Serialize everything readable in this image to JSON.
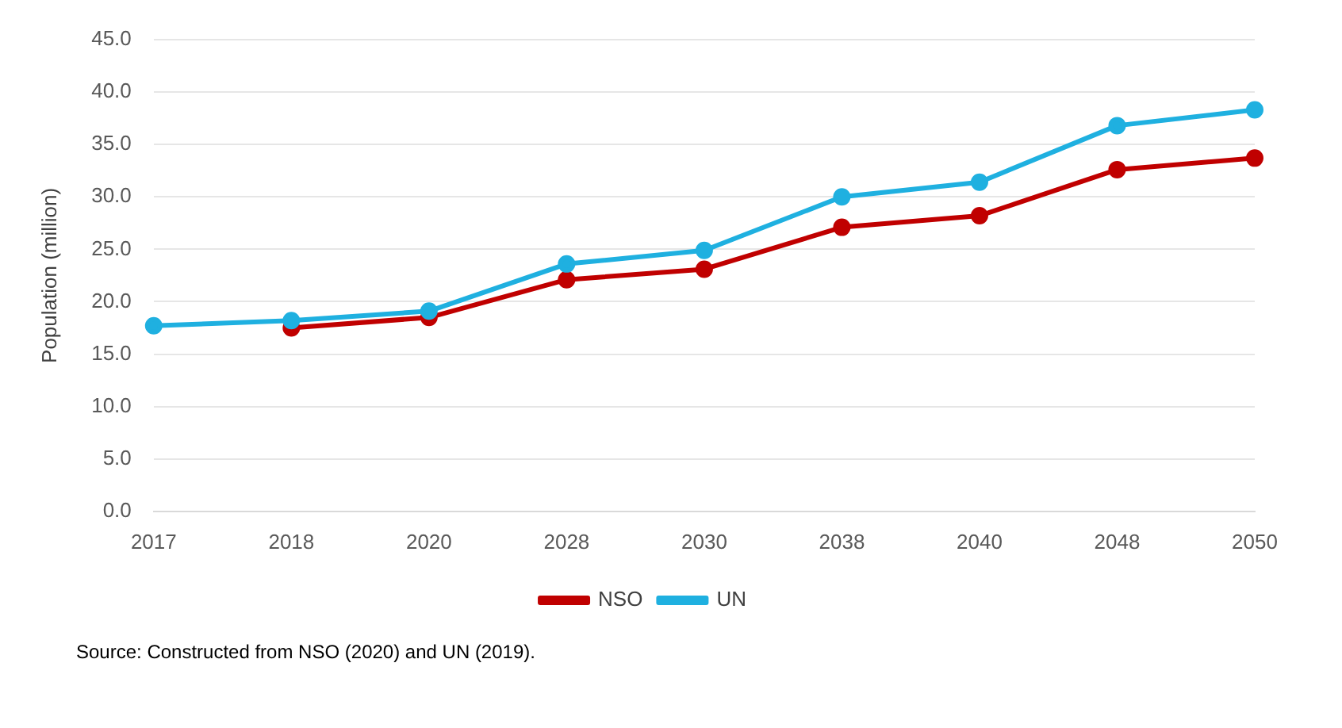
{
  "chart_data": {
    "type": "line",
    "ylabel": "Population (million)",
    "categories": [
      "2017",
      "2018",
      "2020",
      "2028",
      "2030",
      "2038",
      "2040",
      "2048",
      "2050"
    ],
    "series": [
      {
        "name": "NSO",
        "color": "#c00000",
        "values": [
          null,
          17.5,
          18.5,
          22.1,
          23.1,
          27.1,
          28.2,
          32.6,
          33.7
        ]
      },
      {
        "name": "UN",
        "color": "#1fb0e0",
        "values": [
          17.7,
          18.2,
          19.1,
          23.6,
          24.9,
          30.0,
          31.4,
          36.8,
          38.3
        ]
      }
    ],
    "ylim": [
      0,
      45
    ],
    "yticks": [
      {
        "value": 0,
        "label": "0.0"
      },
      {
        "value": 5,
        "label": "5.0"
      },
      {
        "value": 10,
        "label": "10.0"
      },
      {
        "value": 15,
        "label": "15.0"
      },
      {
        "value": 20,
        "label": "20.0"
      },
      {
        "value": 25,
        "label": "25.0"
      },
      {
        "value": 30,
        "label": "30.0"
      },
      {
        "value": 35,
        "label": "35.0"
      },
      {
        "value": 40,
        "label": "40.0"
      },
      {
        "value": 45,
        "label": "45.0"
      }
    ],
    "grid": "y",
    "legend": "bottom",
    "marker": "circle",
    "line_style": "solid",
    "annotations": [
      "Source: Constructed from NSO (2020) and UN (2019)."
    ]
  }
}
